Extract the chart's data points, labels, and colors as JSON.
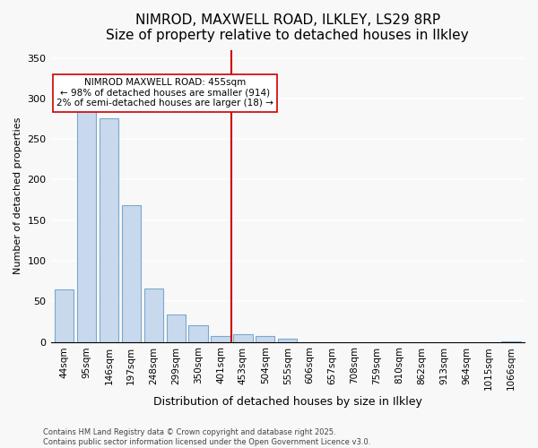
{
  "title": "NIMROD, MAXWELL ROAD, ILKLEY, LS29 8RP",
  "subtitle": "Size of property relative to detached houses in Ilkley",
  "xlabel": "Distribution of detached houses by size in Ilkley",
  "ylabel": "Number of detached properties",
  "bar_labels": [
    "44sqm",
    "95sqm",
    "146sqm",
    "197sqm",
    "248sqm",
    "299sqm",
    "350sqm",
    "401sqm",
    "453sqm",
    "504sqm",
    "555sqm",
    "606sqm",
    "657sqm",
    "708sqm",
    "759sqm",
    "810sqm",
    "862sqm",
    "913sqm",
    "964sqm",
    "1015sqm",
    "1066sqm"
  ],
  "bar_values": [
    65,
    286,
    275,
    168,
    66,
    34,
    20,
    7,
    10,
    7,
    4,
    0,
    0,
    0,
    0,
    0,
    0,
    0,
    0,
    0,
    1
  ],
  "bar_color": "#c8d9ee",
  "bar_edge_color": "#7aa8cc",
  "vline_x_index": 8,
  "vline_color": "#cc0000",
  "annotation_title": "NIMROD MAXWELL ROAD: 455sqm",
  "annotation_line1": "← 98% of detached houses are smaller (914)",
  "annotation_line2": "2% of semi-detached houses are larger (18) →",
  "annotation_box_color": "#ffffff",
  "annotation_box_edge": "#cc0000",
  "ylim": [
    0,
    360
  ],
  "yticks": [
    0,
    50,
    100,
    150,
    200,
    250,
    300,
    350
  ],
  "footer_line1": "Contains HM Land Registry data © Crown copyright and database right 2025.",
  "footer_line2": "Contains public sector information licensed under the Open Government Licence v3.0.",
  "bg_color": "#f8f8f8",
  "title_fontsize": 11,
  "subtitle_fontsize": 10
}
